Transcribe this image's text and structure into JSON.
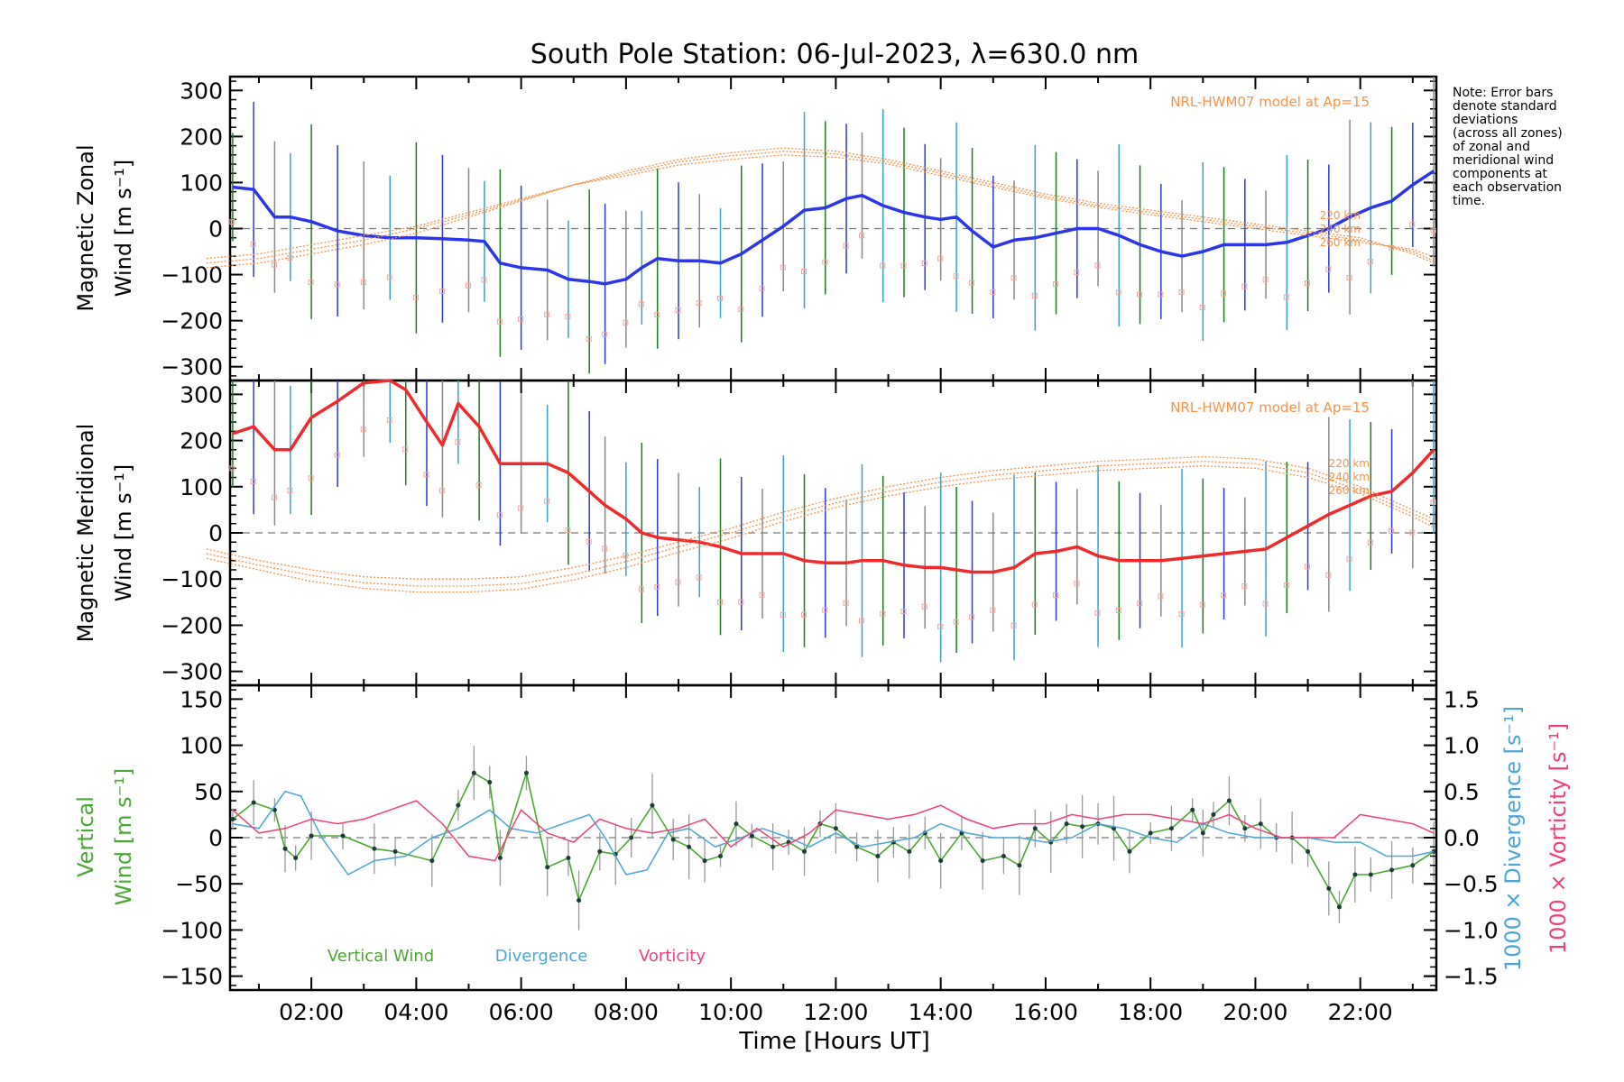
{
  "chart_data": [
    {
      "type": "line",
      "panel": "zonal",
      "title": "South Pole Station: 06-Jul-2023, λ=630.0 nm",
      "ylabel_line1": "Magnetic Zonal",
      "ylabel_line2": "Wind [m s⁻¹]",
      "ylim": [
        -330,
        330
      ],
      "yticks": [
        300,
        200,
        100,
        0,
        -100,
        -200,
        -300
      ],
      "model_label": "NRL-HWM07 model at Ap=15",
      "altitude_labels": [
        "220 km",
        "240 km",
        "260 km"
      ],
      "note": [
        "Note: Error bars",
        "denote standard",
        "deviations",
        "(across all zones)",
        "of zonal and",
        "meridional wind",
        "components at",
        "each observation",
        "time."
      ],
      "series": [
        {
          "name": "zonal wind",
          "color": "#2a36e8",
          "x": [
            0.5,
            0.9,
            1.3,
            1.6,
            2.0,
            2.5,
            3.0,
            3.5,
            4.0,
            4.5,
            5.0,
            5.3,
            5.6,
            6.0,
            6.5,
            6.9,
            7.3,
            7.6,
            8.0,
            8.3,
            8.6,
            9.0,
            9.4,
            9.8,
            10.2,
            10.6,
            11.0,
            11.4,
            11.8,
            12.2,
            12.5,
            12.9,
            13.3,
            13.7,
            14.0,
            14.3,
            14.6,
            15.0,
            15.4,
            15.8,
            16.2,
            16.6,
            17.0,
            17.4,
            17.8,
            18.2,
            18.6,
            19.0,
            19.4,
            19.8,
            20.2,
            20.6,
            21.0,
            21.4,
            21.8,
            22.2,
            22.6,
            23.0,
            23.4
          ],
          "y": [
            90,
            85,
            25,
            25,
            15,
            -5,
            -15,
            -20,
            -20,
            -22,
            -25,
            -28,
            -75,
            -85,
            -90,
            -110,
            -115,
            -120,
            -110,
            -85,
            -65,
            -70,
            -70,
            -75,
            -55,
            -25,
            5,
            40,
            45,
            65,
            72,
            50,
            35,
            25,
            20,
            25,
            -5,
            -40,
            -25,
            -20,
            -10,
            0,
            0,
            -15,
            -35,
            -50,
            -60,
            -50,
            -35,
            -35,
            -35,
            -30,
            -15,
            0,
            25,
            45,
            60,
            95,
            125
          ]
        },
        {
          "name": "model 220 km",
          "color": "#f5934a",
          "x": [
            0,
            1,
            2,
            3,
            4,
            5,
            6,
            7,
            8,
            9,
            10,
            11,
            12,
            13,
            14,
            15,
            16,
            17,
            18,
            19,
            20,
            21,
            22,
            23,
            23.4
          ],
          "y": [
            -85,
            -75,
            -55,
            -35,
            -10,
            25,
            60,
            95,
            125,
            150,
            165,
            175,
            168,
            150,
            125,
            100,
            75,
            55,
            40,
            25,
            10,
            -5,
            -20,
            -55,
            -75
          ]
        },
        {
          "name": "model 240 km",
          "color": "#f5934a",
          "x": [
            0,
            1,
            2,
            3,
            4,
            5,
            6,
            7,
            8,
            9,
            10,
            11,
            12,
            13,
            14,
            15,
            16,
            17,
            18,
            19,
            20,
            21,
            22,
            23,
            23.4
          ],
          "y": [
            -75,
            -65,
            -45,
            -25,
            0,
            30,
            62,
            95,
            120,
            145,
            158,
            168,
            162,
            145,
            120,
            95,
            70,
            50,
            35,
            20,
            5,
            -10,
            -25,
            -50,
            -70
          ]
        },
        {
          "name": "model 260 km",
          "color": "#f5934a",
          "x": [
            0,
            1,
            2,
            3,
            4,
            5,
            6,
            7,
            8,
            9,
            10,
            11,
            12,
            13,
            14,
            15,
            16,
            17,
            18,
            19,
            20,
            21,
            22,
            23,
            23.4
          ],
          "y": [
            -65,
            -55,
            -35,
            -15,
            5,
            35,
            65,
            95,
            115,
            138,
            150,
            160,
            155,
            140,
            115,
            90,
            66,
            46,
            30,
            15,
            0,
            -15,
            -30,
            -45,
            -62
          ]
        }
      ]
    },
    {
      "type": "line",
      "panel": "meridional",
      "ylabel_line1": "Magnetic Meridional",
      "ylabel_line2": "Wind [m s⁻¹]",
      "ylim": [
        -330,
        330
      ],
      "yticks": [
        300,
        200,
        100,
        0,
        -100,
        -200,
        -300
      ],
      "model_label": "NRL-HWM07 model at Ap=15",
      "altitude_labels": [
        "220 km",
        "240 km",
        "260 km"
      ],
      "series": [
        {
          "name": "meridional wind",
          "color": "#f02a2a",
          "x": [
            0.5,
            0.9,
            1.3,
            1.6,
            2.0,
            2.5,
            3.0,
            3.5,
            3.8,
            4.2,
            4.5,
            4.8,
            5.2,
            5.6,
            6.0,
            6.5,
            6.9,
            7.3,
            7.6,
            8.0,
            8.3,
            8.6,
            9.0,
            9.4,
            9.8,
            10.2,
            10.6,
            11.0,
            11.4,
            11.8,
            12.2,
            12.5,
            12.9,
            13.3,
            13.7,
            14.0,
            14.3,
            14.6,
            15.0,
            15.4,
            15.8,
            16.2,
            16.6,
            17.0,
            17.4,
            17.8,
            18.2,
            18.6,
            19.0,
            19.4,
            19.8,
            20.2,
            20.6,
            21.0,
            21.4,
            21.8,
            22.2,
            22.6,
            23.0,
            23.4
          ],
          "y": [
            215,
            230,
            180,
            180,
            250,
            285,
            325,
            330,
            310,
            240,
            190,
            280,
            230,
            150,
            150,
            150,
            130,
            90,
            60,
            30,
            0,
            -10,
            -15,
            -20,
            -30,
            -45,
            -45,
            -45,
            -60,
            -65,
            -65,
            -60,
            -60,
            -70,
            -75,
            -75,
            -80,
            -85,
            -85,
            -75,
            -45,
            -40,
            -30,
            -50,
            -60,
            -60,
            -60,
            -55,
            -50,
            -45,
            -40,
            -35,
            -10,
            15,
            40,
            60,
            80,
            90,
            130,
            180
          ]
        },
        {
          "name": "model 220 km",
          "color": "#f5934a",
          "x": [
            0,
            1,
            2,
            3,
            4,
            5,
            6,
            7,
            8,
            9,
            10,
            11,
            12,
            13,
            14,
            15,
            16,
            17,
            18,
            19,
            20,
            21,
            22,
            23,
            23.4
          ],
          "y": [
            -35,
            -60,
            -80,
            -95,
            -100,
            -100,
            -95,
            -75,
            -50,
            -20,
            10,
            45,
            75,
            100,
            120,
            135,
            145,
            155,
            160,
            165,
            160,
            140,
            100,
            50,
            30
          ]
        },
        {
          "name": "model 240 km",
          "color": "#f5934a",
          "x": [
            0,
            1,
            2,
            3,
            4,
            5,
            6,
            7,
            8,
            9,
            10,
            11,
            12,
            13,
            14,
            15,
            16,
            17,
            18,
            19,
            20,
            21,
            22,
            23,
            23.4
          ],
          "y": [
            -45,
            -70,
            -92,
            -108,
            -115,
            -115,
            -110,
            -90,
            -62,
            -30,
            0,
            35,
            65,
            90,
            110,
            125,
            135,
            145,
            150,
            155,
            150,
            130,
            92,
            42,
            22
          ]
        },
        {
          "name": "model 260 km",
          "color": "#f5934a",
          "x": [
            0,
            1,
            2,
            3,
            4,
            5,
            6,
            7,
            8,
            9,
            10,
            11,
            12,
            13,
            14,
            15,
            16,
            17,
            18,
            19,
            20,
            21,
            22,
            23,
            23.4
          ],
          "y": [
            -55,
            -80,
            -105,
            -120,
            -128,
            -128,
            -122,
            -102,
            -75,
            -42,
            -12,
            25,
            55,
            80,
            100,
            115,
            125,
            135,
            140,
            145,
            140,
            120,
            85,
            35,
            12
          ]
        }
      ]
    },
    {
      "type": "line",
      "panel": "vertical",
      "ylabel_line1": "Vertical",
      "ylabel_line2": "Wind [m s⁻¹]",
      "ylim": [
        -165,
        165
      ],
      "yticks": [
        150,
        100,
        50,
        0,
        -50,
        -100,
        -150
      ],
      "y2label_div": "1000 × Divergence [s⁻¹]",
      "y2label_vort": "1000 × Vorticity [s⁻¹]",
      "y2lim": [
        -1.65,
        1.65
      ],
      "y2ticks": [
        "1.5",
        "1.0",
        "0.5",
        "0.0",
        "−0.5",
        "−1.0",
        "−1.5"
      ],
      "xlabel": "Time [Hours UT]",
      "xticks": [
        "02:00",
        "04:00",
        "06:00",
        "08:00",
        "10:00",
        "12:00",
        "14:00",
        "16:00",
        "18:00",
        "20:00",
        "22:00"
      ],
      "xlim": [
        0.45,
        23.45
      ],
      "legend": [
        "Vertical Wind",
        "Divergence",
        "Vorticity"
      ],
      "series": [
        {
          "name": "Vertical Wind",
          "color": "#4aa832",
          "x": [
            0.5,
            0.9,
            1.3,
            1.5,
            1.7,
            2.0,
            2.6,
            3.2,
            3.6,
            4.3,
            4.8,
            5.1,
            5.4,
            5.6,
            6.1,
            6.5,
            6.9,
            7.1,
            7.5,
            7.8,
            8.1,
            8.5,
            8.9,
            9.2,
            9.5,
            9.8,
            10.1,
            10.4,
            10.8,
            11.1,
            11.4,
            11.7,
            12.0,
            12.4,
            12.8,
            13.1,
            13.4,
            13.7,
            14.0,
            14.4,
            14.8,
            15.2,
            15.5,
            15.8,
            16.1,
            16.4,
            16.7,
            17.0,
            17.3,
            17.6,
            18.0,
            18.4,
            18.8,
            19.0,
            19.2,
            19.5,
            19.8,
            20.1,
            20.4,
            20.7,
            21.0,
            21.4,
            21.6,
            21.9,
            22.2,
            22.6,
            23.0,
            23.4
          ],
          "y": [
            20,
            38,
            30,
            -12,
            -22,
            2,
            2,
            -12,
            -15,
            -25,
            35,
            70,
            60,
            -22,
            70,
            -32,
            -22,
            -68,
            -15,
            -18,
            0,
            35,
            -2,
            -10,
            -25,
            -20,
            15,
            2,
            -10,
            -5,
            -15,
            15,
            10,
            -10,
            -20,
            -5,
            -15,
            5,
            -25,
            5,
            -25,
            -20,
            -30,
            10,
            -5,
            15,
            12,
            15,
            10,
            -15,
            5,
            10,
            30,
            5,
            25,
            40,
            10,
            15,
            0,
            0,
            -15,
            -55,
            -75,
            -40,
            -40,
            -35,
            -30,
            -15
          ]
        },
        {
          "name": "Divergence",
          "color": "#4aa6d4",
          "x": [
            0.5,
            1.0,
            1.5,
            1.8,
            2.2,
            2.7,
            3.2,
            3.8,
            4.3,
            4.8,
            5.4,
            5.8,
            6.3,
            6.8,
            7.3,
            7.6,
            8.0,
            8.4,
            8.8,
            9.2,
            9.7,
            10.2,
            10.6,
            11.1,
            11.5,
            12.0,
            12.5,
            13.0,
            13.5,
            14.0,
            14.5,
            15.0,
            15.5,
            16.0,
            16.5,
            17.0,
            17.5,
            18.0,
            18.5,
            19.0,
            19.5,
            20.0,
            20.5,
            21.0,
            21.5,
            22.0,
            22.5,
            23.0,
            23.4
          ],
          "y": [
            0.15,
            0.1,
            0.5,
            0.45,
            0.0,
            -0.4,
            -0.25,
            -0.2,
            0.0,
            0.1,
            0.3,
            0.1,
            0.05,
            0.15,
            0.25,
            0.0,
            -0.4,
            -0.35,
            0.05,
            0.1,
            -0.1,
            0.0,
            0.1,
            0.0,
            -0.1,
            0.05,
            -0.1,
            -0.05,
            0.0,
            0.15,
            0.05,
            0.0,
            0.0,
            -0.05,
            0.0,
            0.15,
            0.1,
            0.0,
            -0.05,
            0.15,
            0.05,
            0.0,
            0.0,
            0.0,
            -0.05,
            -0.05,
            -0.2,
            -0.2,
            -0.15
          ]
        },
        {
          "name": "Vorticity",
          "color": "#f0407a",
          "x": [
            0.5,
            1.0,
            1.5,
            2.0,
            2.5,
            3.0,
            3.5,
            4.0,
            4.5,
            5.0,
            5.5,
            6.0,
            6.5,
            7.0,
            7.5,
            8.0,
            8.5,
            9.0,
            9.5,
            10.0,
            10.5,
            11.0,
            11.5,
            12.0,
            12.5,
            13.0,
            13.5,
            14.0,
            14.5,
            15.0,
            15.5,
            16.0,
            16.5,
            17.0,
            17.5,
            18.0,
            18.5,
            19.0,
            19.5,
            20.0,
            20.5,
            21.0,
            21.5,
            22.0,
            22.5,
            23.0,
            23.4
          ],
          "y": [
            0.3,
            0.05,
            0.1,
            0.2,
            0.15,
            0.2,
            0.3,
            0.4,
            0.15,
            -0.2,
            -0.25,
            0.3,
            0.05,
            -0.05,
            0.2,
            0.1,
            0.05,
            0.1,
            0.2,
            -0.1,
            0.1,
            -0.1,
            0.05,
            0.3,
            0.25,
            0.2,
            0.25,
            0.35,
            0.2,
            0.1,
            0.15,
            0.15,
            0.25,
            0.2,
            0.25,
            0.25,
            0.2,
            0.15,
            0.25,
            0.1,
            0.0,
            0.0,
            0.0,
            0.25,
            0.2,
            0.15,
            0.05
          ]
        }
      ]
    }
  ]
}
